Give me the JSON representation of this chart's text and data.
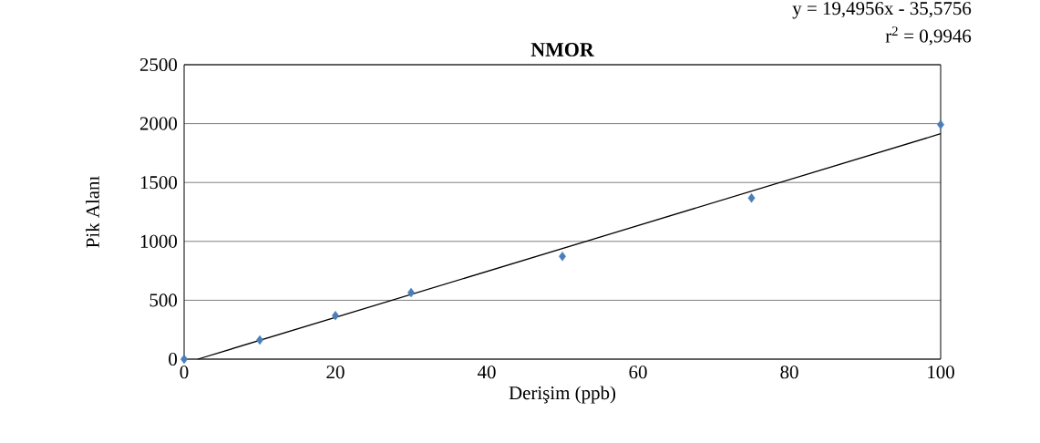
{
  "chart_data": {
    "type": "scatter",
    "title": "NMOR",
    "xlabel": "Derişim (ppb)",
    "ylabel": "Pik Alanı",
    "annotations": [
      "y = 19,4956x - 35,5756",
      "r$^{2}$ = 0,9946"
    ],
    "x": [
      0,
      10,
      20,
      30,
      50,
      75,
      100
    ],
    "series": [
      {
        "color": "#4a7ebb",
        "marker": "diamond",
        "values": [
          0,
          162,
          370,
          565,
          872,
          1368,
          1992
        ]
      },
      {
        "type": "line",
        "color": "#000000",
        "x": [
          1.82,
          100
        ],
        "values": [
          0,
          1914
        ]
      }
    ],
    "xlim": [
      0,
      100
    ],
    "ylim": [
      0,
      2500
    ],
    "xticks": [
      0,
      20,
      40,
      60,
      80,
      100
    ],
    "yticks": [
      0,
      500,
      1000,
      1500,
      2000,
      2500
    ],
    "grid": "y"
  }
}
